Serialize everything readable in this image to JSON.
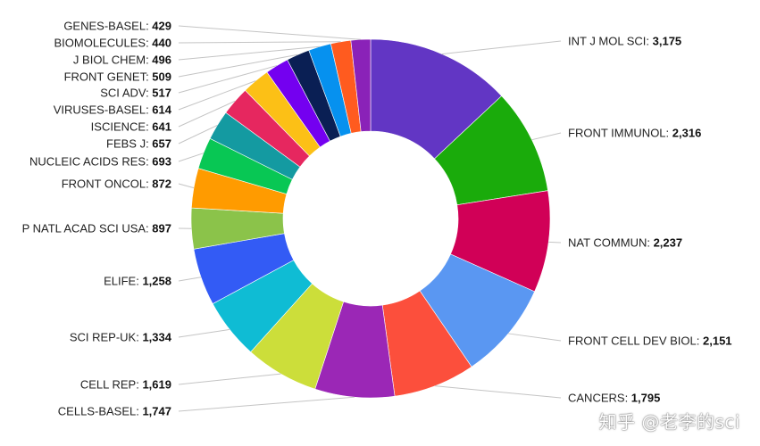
{
  "chart_data": {
    "type": "pie",
    "donut": true,
    "categories": [
      "INT J MOL SCI",
      "FRONT IMMUNOL",
      "NAT COMMUN",
      "FRONT CELL DEV BIOL",
      "CANCERS",
      "CELLS-BASEL",
      "CELL REP",
      "SCI REP-UK",
      "ELIFE",
      "P NATL ACAD SCI USA",
      "FRONT ONCOL",
      "NUCLEIC ACIDS RES",
      "FEBS J",
      "ISCIENCE",
      "VIRUSES-BASEL",
      "SCI ADV",
      "FRONT GENET",
      "J BIOL CHEM",
      "BIOMOLECULES",
      "GENES-BASEL"
    ],
    "values": [
      3175,
      2316,
      2237,
      2151,
      1795,
      1747,
      1619,
      1334,
      1258,
      897,
      872,
      693,
      657,
      641,
      614,
      517,
      509,
      496,
      440,
      429
    ],
    "value_labels": [
      "3,175",
      "2,316",
      "2,237",
      "2,151",
      "1,795",
      "1,747",
      "1,619",
      "1,334",
      "1,258",
      "897",
      "872",
      "693",
      "657",
      "641",
      "614",
      "517",
      "509",
      "496",
      "440",
      "429"
    ],
    "colors": [
      "#6236c4",
      "#1aab0b",
      "#d10057",
      "#5a97f2",
      "#fc4f3c",
      "#9b27b6",
      "#ccde3a",
      "#0fbcd4",
      "#335bf5",
      "#8bc34a",
      "#ff9b00",
      "#08c754",
      "#149aa1",
      "#e6275f",
      "#fcc016",
      "#7400f0",
      "#0a1f54",
      "#0691ef",
      "#ff5b1f",
      "#8a22b8"
    ],
    "legend": "none",
    "title": ""
  },
  "watermark": "知乎 @老李的sci"
}
